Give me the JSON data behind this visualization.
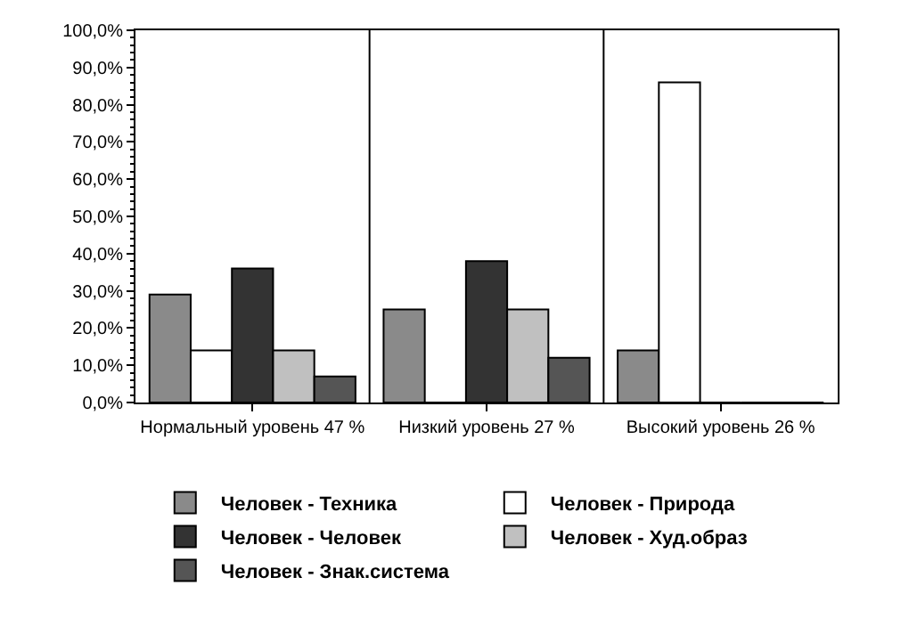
{
  "chart_data": {
    "type": "bar",
    "categories": [
      "Нормальный уровень 47 %",
      "Низкий уровень 27 %",
      "Высокий уровень 26 %"
    ],
    "series": [
      {
        "name": "Человек - Техника",
        "color": "#8a8a8a",
        "values": [
          29,
          25,
          14
        ]
      },
      {
        "name": "Человек - Природа",
        "color": "#ffffff",
        "values": [
          14,
          0,
          86
        ]
      },
      {
        "name": "Человек - Человек",
        "color": "#333333",
        "values": [
          36,
          38,
          0
        ]
      },
      {
        "name": "Человек - Худ.образ",
        "color": "#c0c0c0",
        "values": [
          14,
          25,
          0
        ]
      },
      {
        "name": "Человек - Знак.система",
        "color": "#555555",
        "values": [
          7,
          12,
          0
        ]
      }
    ],
    "ylim": [
      0,
      100
    ],
    "yticks": [
      {
        "value": 0,
        "label": "0,0%"
      },
      {
        "value": 10,
        "label": "10,0%"
      },
      {
        "value": 20,
        "label": "20,0%"
      },
      {
        "value": 30,
        "label": "30,0%"
      },
      {
        "value": 40,
        "label": "40,0%"
      },
      {
        "value": 50,
        "label": "50,0%"
      },
      {
        "value": 60,
        "label": "60,0%"
      },
      {
        "value": 70,
        "label": "70,0%"
      },
      {
        "value": 80,
        "label": "80,0%"
      },
      {
        "value": 90,
        "label": "90,0%"
      },
      {
        "value": 100,
        "label": "100,0%"
      }
    ],
    "grid": "x",
    "legend": "bottom"
  }
}
